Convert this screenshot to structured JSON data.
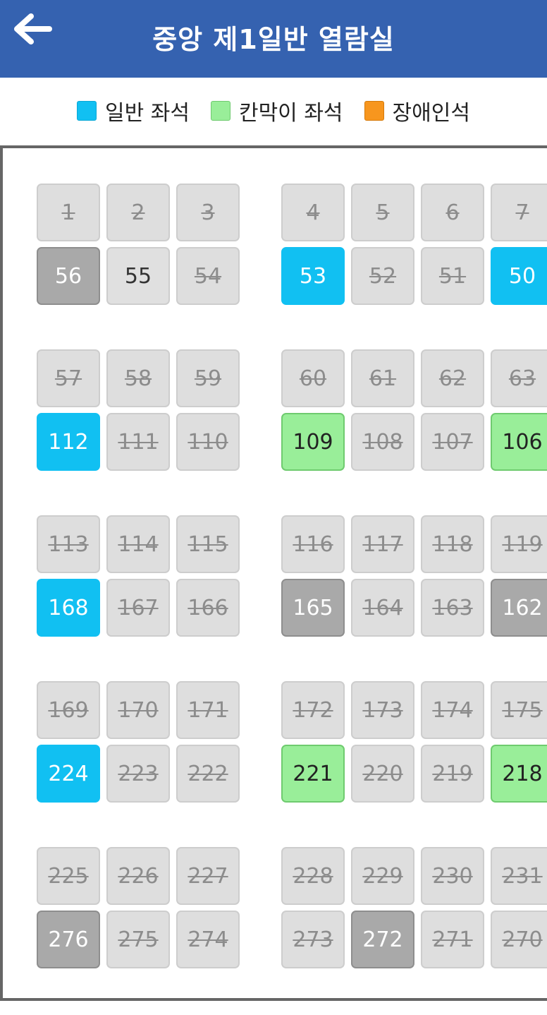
{
  "header": {
    "title": "중앙 제1일반 열람실",
    "back_icon": "arrow-left-icon"
  },
  "legend": [
    {
      "label": "일반 좌석",
      "color": "#11c0f2"
    },
    {
      "label": "칸막이 좌석",
      "color": "#99ee99"
    },
    {
      "label": "장애인석",
      "color": "#f7961e"
    }
  ],
  "seat_status_colors": {
    "used": "#dedede",
    "available": "#e0e0e0",
    "occupied": "#a9a9a9",
    "general": "#11c0f2",
    "booth": "#99ee99"
  },
  "seat_blocks": [
    {
      "top_row": [
        {
          "n": "1",
          "s": "used"
        },
        {
          "n": "2",
          "s": "used"
        },
        {
          "n": "3",
          "s": "used"
        },
        {
          "n": "4",
          "s": "used"
        },
        {
          "n": "5",
          "s": "used"
        },
        {
          "n": "6",
          "s": "used"
        },
        {
          "n": "7",
          "s": "used"
        }
      ],
      "bottom_row": [
        {
          "n": "56",
          "s": "occupied"
        },
        {
          "n": "55",
          "s": "available"
        },
        {
          "n": "54",
          "s": "used"
        },
        {
          "n": "53",
          "s": "general"
        },
        {
          "n": "52",
          "s": "used"
        },
        {
          "n": "51",
          "s": "used"
        },
        {
          "n": "50",
          "s": "general"
        }
      ]
    },
    {
      "top_row": [
        {
          "n": "57",
          "s": "used"
        },
        {
          "n": "58",
          "s": "used"
        },
        {
          "n": "59",
          "s": "used"
        },
        {
          "n": "60",
          "s": "used"
        },
        {
          "n": "61",
          "s": "used"
        },
        {
          "n": "62",
          "s": "used"
        },
        {
          "n": "63",
          "s": "used"
        }
      ],
      "bottom_row": [
        {
          "n": "112",
          "s": "general"
        },
        {
          "n": "111",
          "s": "used"
        },
        {
          "n": "110",
          "s": "used"
        },
        {
          "n": "109",
          "s": "booth"
        },
        {
          "n": "108",
          "s": "used"
        },
        {
          "n": "107",
          "s": "used"
        },
        {
          "n": "106",
          "s": "booth"
        }
      ]
    },
    {
      "top_row": [
        {
          "n": "113",
          "s": "used"
        },
        {
          "n": "114",
          "s": "used"
        },
        {
          "n": "115",
          "s": "used"
        },
        {
          "n": "116",
          "s": "used"
        },
        {
          "n": "117",
          "s": "used"
        },
        {
          "n": "118",
          "s": "used"
        },
        {
          "n": "119",
          "s": "used"
        }
      ],
      "bottom_row": [
        {
          "n": "168",
          "s": "general"
        },
        {
          "n": "167",
          "s": "used"
        },
        {
          "n": "166",
          "s": "used"
        },
        {
          "n": "165",
          "s": "occupied"
        },
        {
          "n": "164",
          "s": "used"
        },
        {
          "n": "163",
          "s": "used"
        },
        {
          "n": "162",
          "s": "occupied"
        }
      ]
    },
    {
      "top_row": [
        {
          "n": "169",
          "s": "used"
        },
        {
          "n": "170",
          "s": "used"
        },
        {
          "n": "171",
          "s": "used"
        },
        {
          "n": "172",
          "s": "used"
        },
        {
          "n": "173",
          "s": "used"
        },
        {
          "n": "174",
          "s": "used"
        },
        {
          "n": "175",
          "s": "used"
        }
      ],
      "bottom_row": [
        {
          "n": "224",
          "s": "general"
        },
        {
          "n": "223",
          "s": "used"
        },
        {
          "n": "222",
          "s": "used"
        },
        {
          "n": "221",
          "s": "booth"
        },
        {
          "n": "220",
          "s": "used"
        },
        {
          "n": "219",
          "s": "used"
        },
        {
          "n": "218",
          "s": "booth"
        }
      ]
    },
    {
      "top_row": [
        {
          "n": "225",
          "s": "used"
        },
        {
          "n": "226",
          "s": "used"
        },
        {
          "n": "227",
          "s": "used"
        },
        {
          "n": "228",
          "s": "used"
        },
        {
          "n": "229",
          "s": "used"
        },
        {
          "n": "230",
          "s": "used"
        },
        {
          "n": "231",
          "s": "used"
        }
      ],
      "bottom_row": [
        {
          "n": "276",
          "s": "occupied"
        },
        {
          "n": "275",
          "s": "used"
        },
        {
          "n": "274",
          "s": "used"
        },
        {
          "n": "273",
          "s": "used"
        },
        {
          "n": "272",
          "s": "occupied"
        },
        {
          "n": "271",
          "s": "used"
        },
        {
          "n": "270",
          "s": "used"
        }
      ]
    }
  ]
}
